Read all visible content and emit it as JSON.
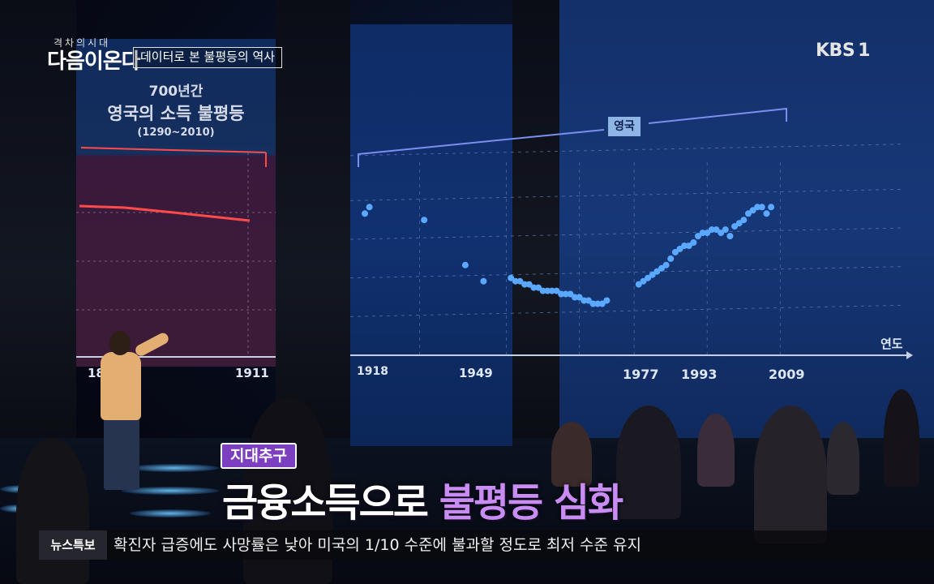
{
  "broadcaster": {
    "logo": "KBS",
    "channel": "1"
  },
  "program": {
    "small_title": "격차의시대",
    "main_title": "다음이온다",
    "segment": "데이터로 본 불평등의 역사"
  },
  "left_screen": {
    "title_line1": "700년간",
    "title_line2": "영국의 소득 불평등",
    "title_line3": "(1290~2010)",
    "x_labels": [
      "18",
      "1911"
    ],
    "line_color": "#ff4a4a"
  },
  "chart_data": {
    "type": "scatter",
    "series": [
      {
        "name": "영국",
        "color": "#5aa8ff"
      }
    ],
    "country_label": "영국",
    "x_axis_title": "연도",
    "x_tick_labels": [
      "1918",
      "1949",
      "1977",
      "1993",
      "2009"
    ],
    "x_range": [
      1918,
      2010
    ],
    "points": [
      [
        1918,
        0.74
      ],
      [
        1919,
        0.76
      ],
      [
        1931,
        0.72
      ],
      [
        1940,
        0.58
      ],
      [
        1944,
        0.53
      ],
      [
        1950,
        0.54
      ],
      [
        1951,
        0.53
      ],
      [
        1952,
        0.53
      ],
      [
        1953,
        0.52
      ],
      [
        1954,
        0.52
      ],
      [
        1955,
        0.51
      ],
      [
        1956,
        0.51
      ],
      [
        1957,
        0.5
      ],
      [
        1958,
        0.5
      ],
      [
        1959,
        0.5
      ],
      [
        1960,
        0.5
      ],
      [
        1961,
        0.49
      ],
      [
        1962,
        0.49
      ],
      [
        1963,
        0.49
      ],
      [
        1964,
        0.48
      ],
      [
        1965,
        0.48
      ],
      [
        1966,
        0.47
      ],
      [
        1967,
        0.47
      ],
      [
        1968,
        0.46
      ],
      [
        1969,
        0.46
      ],
      [
        1970,
        0.46
      ],
      [
        1971,
        0.47
      ],
      [
        1978,
        0.52
      ],
      [
        1979,
        0.53
      ],
      [
        1980,
        0.54
      ],
      [
        1981,
        0.55
      ],
      [
        1982,
        0.56
      ],
      [
        1983,
        0.57
      ],
      [
        1984,
        0.58
      ],
      [
        1985,
        0.6
      ],
      [
        1986,
        0.62
      ],
      [
        1987,
        0.63
      ],
      [
        1988,
        0.64
      ],
      [
        1989,
        0.64
      ],
      [
        1990,
        0.65
      ],
      [
        1991,
        0.67
      ],
      [
        1992,
        0.68
      ],
      [
        1993,
        0.68
      ],
      [
        1994,
        0.69
      ],
      [
        1995,
        0.69
      ],
      [
        1996,
        0.68
      ],
      [
        1997,
        0.69
      ],
      [
        1998,
        0.67
      ],
      [
        1999,
        0.7
      ],
      [
        2000,
        0.71
      ],
      [
        2001,
        0.72
      ],
      [
        2002,
        0.74
      ],
      [
        2003,
        0.75
      ],
      [
        2004,
        0.76
      ],
      [
        2005,
        0.76
      ],
      [
        2006,
        0.74
      ],
      [
        2007,
        0.76
      ]
    ],
    "y_range": [
      0.3,
      1.0
    ],
    "grid": true,
    "legend": "top"
  },
  "lower_third": {
    "tag": "지대추구",
    "headline_white": "금융소득으로",
    "headline_purple": "불평등 심화"
  },
  "ticker": {
    "label": "뉴스특보",
    "text": "확진자 급증에도 사망률은 낮아 미국의 1/10 수준에 불과할 정도로 최저 수준 유지"
  }
}
